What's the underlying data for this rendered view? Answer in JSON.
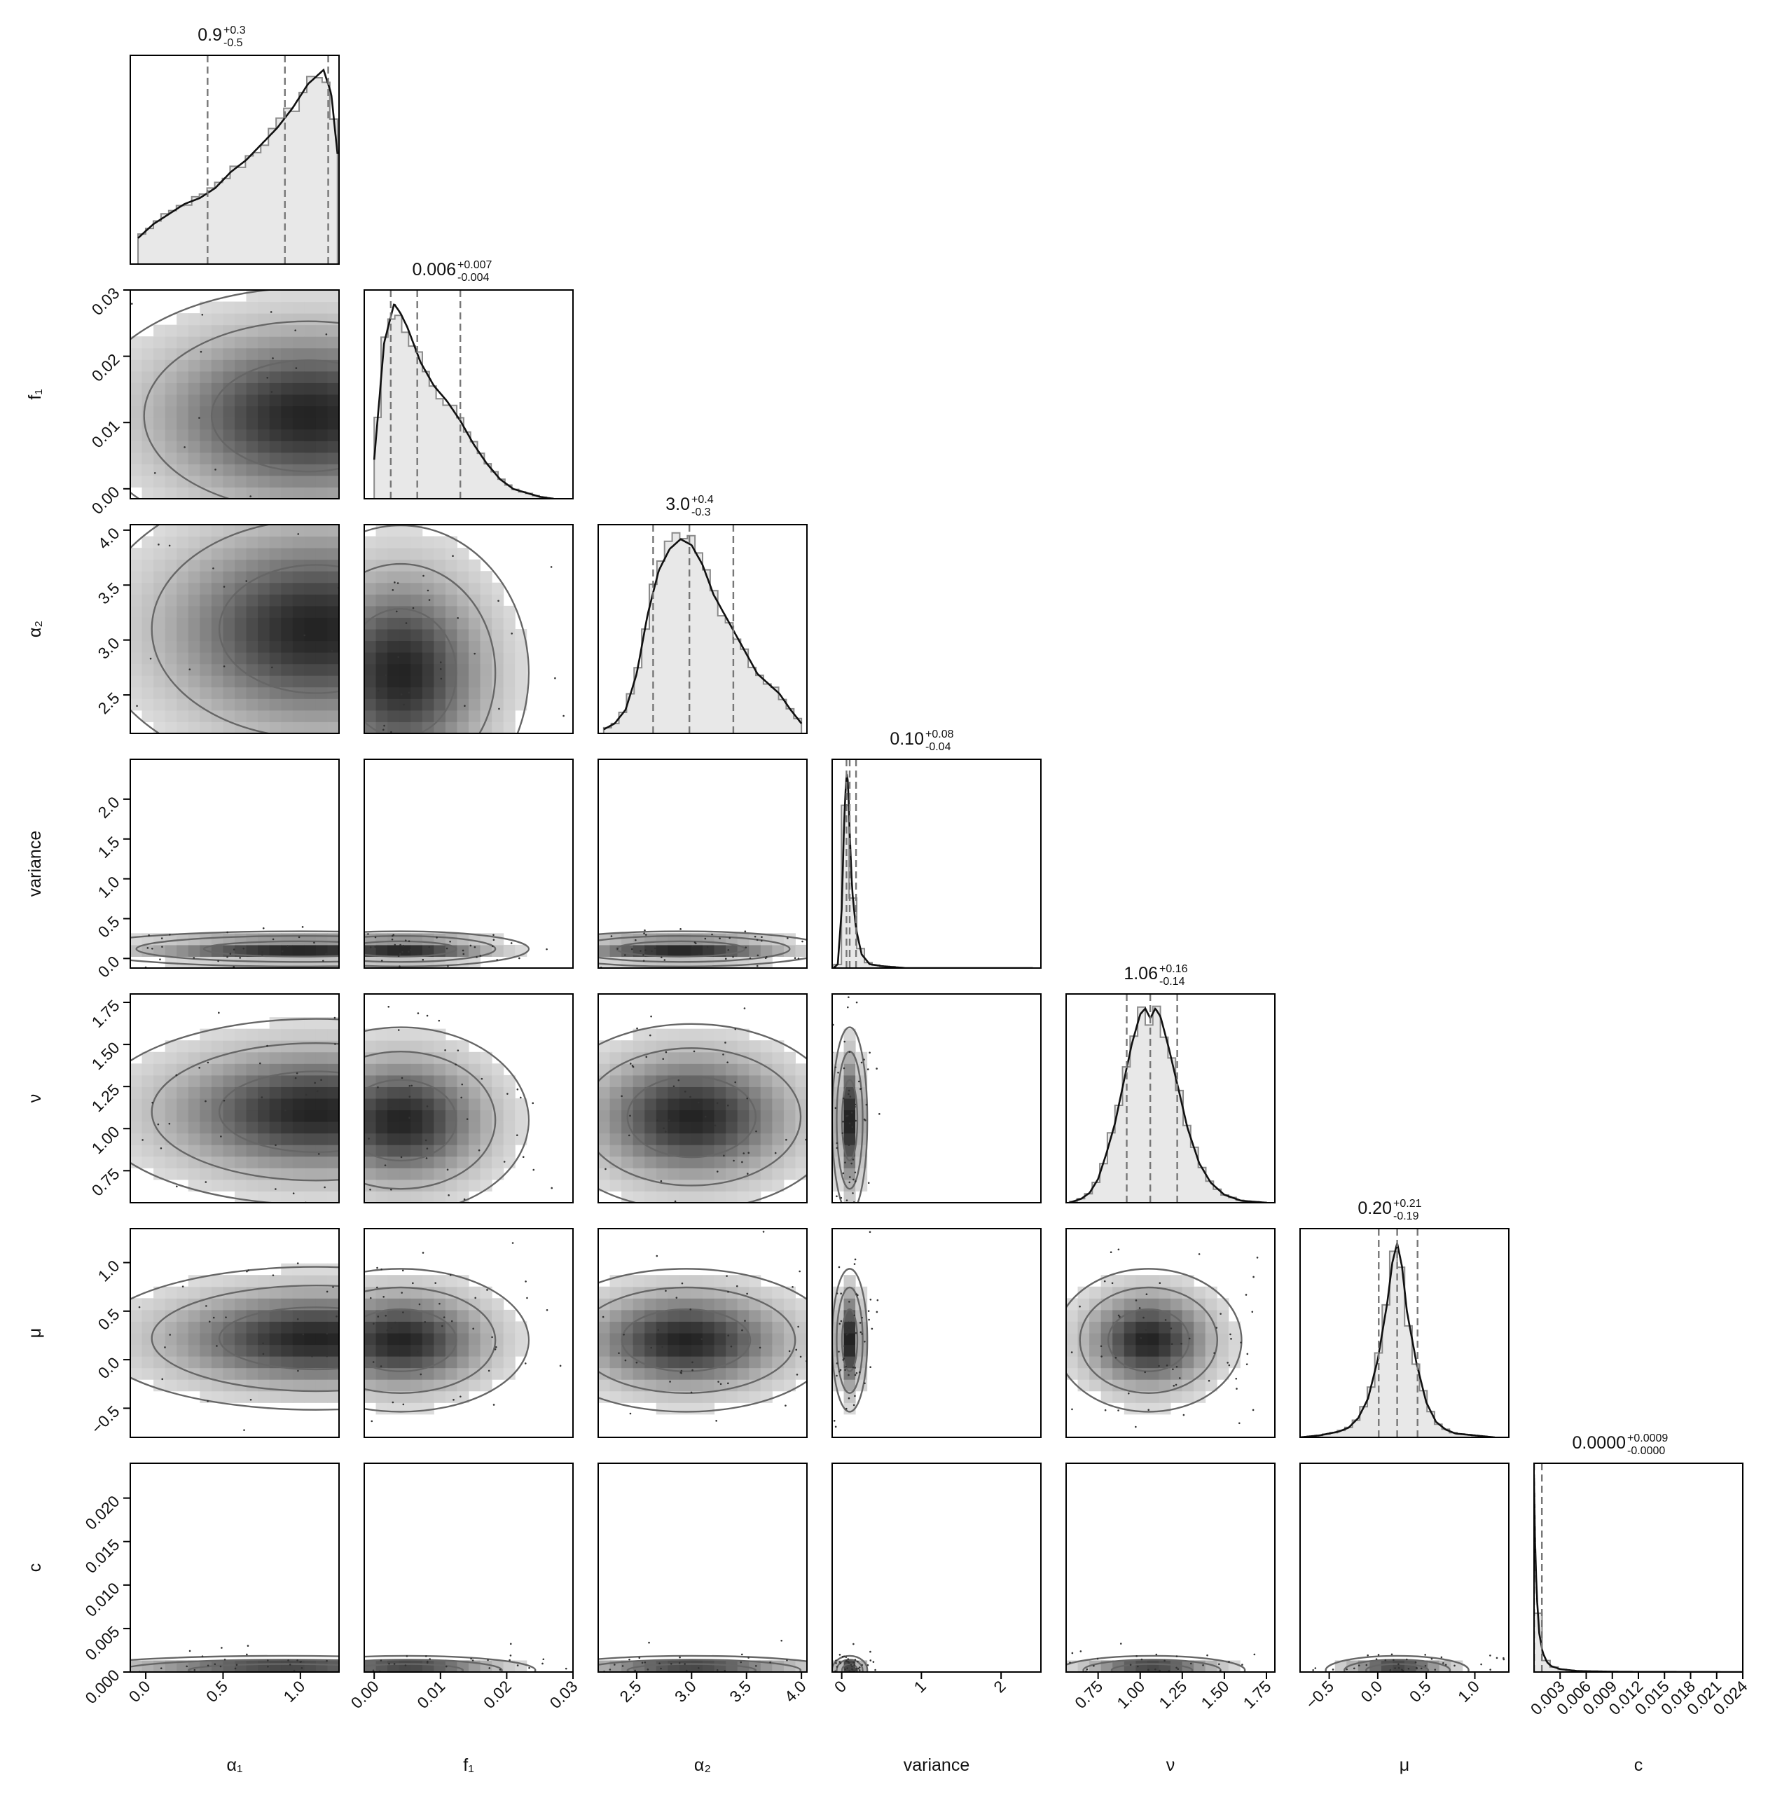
{
  "colors": {
    "fill": "#e8e8e8",
    "hist_edge": "#8a8a8a",
    "kde": "#111111",
    "quantile": "#777777",
    "contour": "#666666",
    "density_dark": "#1a1a1a",
    "frame": "#000000"
  },
  "chart_data": {
    "type": "corner",
    "grid": false,
    "parameters": [
      {
        "label": "α₁",
        "range": [
          -0.1,
          1.25
        ],
        "ticks": [
          "0.0",
          "0.5",
          "1.0"
        ],
        "tick_values": [
          0.0,
          0.5,
          1.0
        ]
      },
      {
        "label": "f₁",
        "range": [
          -0.0015,
          0.03
        ],
        "ticks": [
          "0.00",
          "0.01",
          "0.02",
          "0.03"
        ],
        "tick_values": [
          0.0,
          0.01,
          0.02,
          0.03
        ]
      },
      {
        "label": "α₂",
        "range": [
          2.15,
          4.05
        ],
        "ticks": [
          "2.5",
          "3.0",
          "3.5",
          "4.0"
        ],
        "tick_values": [
          2.5,
          3.0,
          3.5,
          4.0
        ]
      },
      {
        "label": "variance",
        "range": [
          -0.12,
          2.5
        ],
        "ticks": [
          "0",
          "1",
          "2"
        ],
        "tick_values": [
          0,
          1,
          2
        ],
        "y_ticks": [
          "0.0",
          "0.5",
          "1.0",
          "1.5",
          "2.0"
        ],
        "y_tick_values": [
          0.0,
          0.5,
          1.0,
          1.5,
          2.0
        ]
      },
      {
        "label": "ν",
        "range": [
          0.56,
          1.8
        ],
        "ticks": [
          "0.75",
          "1.00",
          "1.25",
          "1.50",
          "1.75"
        ],
        "tick_values": [
          0.75,
          1.0,
          1.25,
          1.5,
          1.75
        ]
      },
      {
        "label": "μ",
        "range": [
          -0.8,
          1.35
        ],
        "ticks": [
          "−0.5",
          "0.0",
          "0.5",
          "1.0"
        ],
        "tick_values": [
          -0.5,
          0.0,
          0.5,
          1.0
        ]
      },
      {
        "label": "c",
        "range": [
          0.0,
          0.024
        ],
        "ticks": [
          "0.003",
          "0.006",
          "0.009",
          "0.012",
          "0.015",
          "0.018",
          "0.021",
          "0.024"
        ],
        "tick_values": [
          0.003,
          0.006,
          0.009,
          0.012,
          0.015,
          0.018,
          0.021,
          0.024
        ],
        "y_ticks": [
          "0.000",
          "0.005",
          "0.010",
          "0.015",
          "0.020"
        ],
        "y_tick_values": [
          0.0,
          0.005,
          0.01,
          0.015,
          0.02
        ]
      }
    ],
    "summaries": [
      {
        "main": "0.9",
        "plus": "+0.3",
        "minus": "-0.5",
        "quantiles": [
          0.4,
          0.9,
          1.18
        ]
      },
      {
        "main": "0.006",
        "plus": "+0.007",
        "minus": "-0.004",
        "quantiles": [
          0.0025,
          0.0065,
          0.013
        ]
      },
      {
        "main": "3.0",
        "plus": "+0.4",
        "minus": "-0.3",
        "quantiles": [
          2.65,
          2.98,
          3.38
        ]
      },
      {
        "main": "0.10",
        "plus": "+0.08",
        "minus": "-0.04",
        "quantiles": [
          0.06,
          0.1,
          0.18
        ]
      },
      {
        "main": "1.06",
        "plus": "+0.16",
        "minus": "-0.14",
        "quantiles": [
          0.92,
          1.06,
          1.22
        ]
      },
      {
        "main": "0.20",
        "plus": "+0.21",
        "minus": "-0.19",
        "quantiles": [
          0.01,
          0.2,
          0.41
        ]
      },
      {
        "main": "0.0000",
        "plus": "+0.0009",
        "minus": "-0.0000",
        "quantiles": [
          0.0,
          0.0,
          0.0009
        ]
      }
    ],
    "marginal_densities": [
      {
        "x": [
          -0.05,
          0.05,
          0.15,
          0.25,
          0.35,
          0.45,
          0.55,
          0.65,
          0.75,
          0.85,
          0.95,
          1.05,
          1.15,
          1.2,
          1.24
        ],
        "density": [
          0.13,
          0.2,
          0.25,
          0.3,
          0.33,
          0.38,
          0.46,
          0.52,
          0.6,
          0.68,
          0.78,
          0.9,
          0.97,
          0.85,
          0.55
        ]
      },
      {
        "x": [
          0.0,
          0.0015,
          0.003,
          0.004,
          0.005,
          0.007,
          0.009,
          0.011,
          0.013,
          0.015,
          0.017,
          0.019,
          0.021,
          0.023,
          0.025,
          0.027
        ],
        "density": [
          0.2,
          0.8,
          1.0,
          0.95,
          0.88,
          0.7,
          0.58,
          0.5,
          0.4,
          0.28,
          0.18,
          0.1,
          0.05,
          0.03,
          0.01,
          0.0
        ]
      },
      {
        "x": [
          2.2,
          2.3,
          2.4,
          2.5,
          2.6,
          2.7,
          2.8,
          2.9,
          3.0,
          3.1,
          3.2,
          3.3,
          3.4,
          3.5,
          3.6,
          3.7,
          3.8,
          3.9,
          4.0
        ],
        "density": [
          0.02,
          0.05,
          0.12,
          0.3,
          0.6,
          0.82,
          0.93,
          0.98,
          0.95,
          0.85,
          0.7,
          0.6,
          0.5,
          0.4,
          0.3,
          0.25,
          0.2,
          0.12,
          0.05
        ]
      },
      {
        "x": [
          -0.1,
          -0.05,
          0.0,
          0.03,
          0.06,
          0.08,
          0.1,
          0.13,
          0.18,
          0.25,
          0.35,
          0.5,
          0.8,
          1.5,
          2.4
        ],
        "density": [
          0.0,
          0.02,
          0.3,
          0.75,
          1.0,
          0.95,
          0.7,
          0.4,
          0.2,
          0.07,
          0.02,
          0.01,
          0.0,
          0.0,
          0.0
        ]
      },
      {
        "x": [
          0.58,
          0.65,
          0.7,
          0.75,
          0.8,
          0.85,
          0.9,
          0.95,
          1.0,
          1.03,
          1.06,
          1.09,
          1.12,
          1.17,
          1.22,
          1.28,
          1.35,
          1.42,
          1.5,
          1.6,
          1.75
        ],
        "density": [
          0.0,
          0.02,
          0.05,
          0.12,
          0.25,
          0.4,
          0.6,
          0.8,
          0.95,
          0.98,
          0.93,
          0.98,
          0.94,
          0.78,
          0.6,
          0.38,
          0.2,
          0.1,
          0.04,
          0.01,
          0.0
        ]
      },
      {
        "x": [
          -0.8,
          -0.6,
          -0.4,
          -0.3,
          -0.2,
          -0.1,
          0.0,
          0.1,
          0.15,
          0.2,
          0.25,
          0.3,
          0.4,
          0.5,
          0.6,
          0.7,
          0.8,
          1.0,
          1.2
        ],
        "density": [
          0.0,
          0.01,
          0.03,
          0.05,
          0.1,
          0.2,
          0.4,
          0.7,
          0.9,
          1.0,
          0.88,
          0.65,
          0.38,
          0.18,
          0.08,
          0.04,
          0.02,
          0.01,
          0.0
        ]
      },
      {
        "x": [
          0.0,
          0.0001,
          0.0003,
          0.0006,
          0.001,
          0.0015,
          0.002,
          0.003,
          0.005,
          0.01,
          0.024
        ],
        "density": [
          1.0,
          0.7,
          0.4,
          0.2,
          0.1,
          0.05,
          0.03,
          0.015,
          0.005,
          0.001,
          0.0
        ]
      }
    ],
    "pair_modes": [
      {
        "x": 1.05,
        "y": 0.011
      },
      {
        "x": 1.1,
        "y": 3.1
      },
      {
        "x": 0.004,
        "y": 2.7
      },
      {
        "x": 1.0,
        "y": 0.12
      },
      {
        "x": 0.004,
        "y": 0.12
      },
      {
        "x": 2.9,
        "y": 0.12
      },
      {
        "x": 1.1,
        "y": 1.1
      },
      {
        "x": 0.004,
        "y": 1.05
      },
      {
        "x": 3.0,
        "y": 1.07
      },
      {
        "x": 0.1,
        "y": 1.05
      },
      {
        "x": 1.1,
        "y": 0.22
      },
      {
        "x": 0.004,
        "y": 0.2
      },
      {
        "x": 2.95,
        "y": 0.2
      },
      {
        "x": 0.1,
        "y": 0.2
      },
      {
        "x": 1.05,
        "y": 0.2
      },
      {
        "x": 0.9,
        "y": 0.0002
      },
      {
        "x": 0.005,
        "y": 0.0002
      },
      {
        "x": 3.0,
        "y": 0.0002
      },
      {
        "x": 0.1,
        "y": 0.0002
      },
      {
        "x": 1.07,
        "y": 0.0002
      },
      {
        "x": 0.2,
        "y": 0.0002
      }
    ]
  }
}
